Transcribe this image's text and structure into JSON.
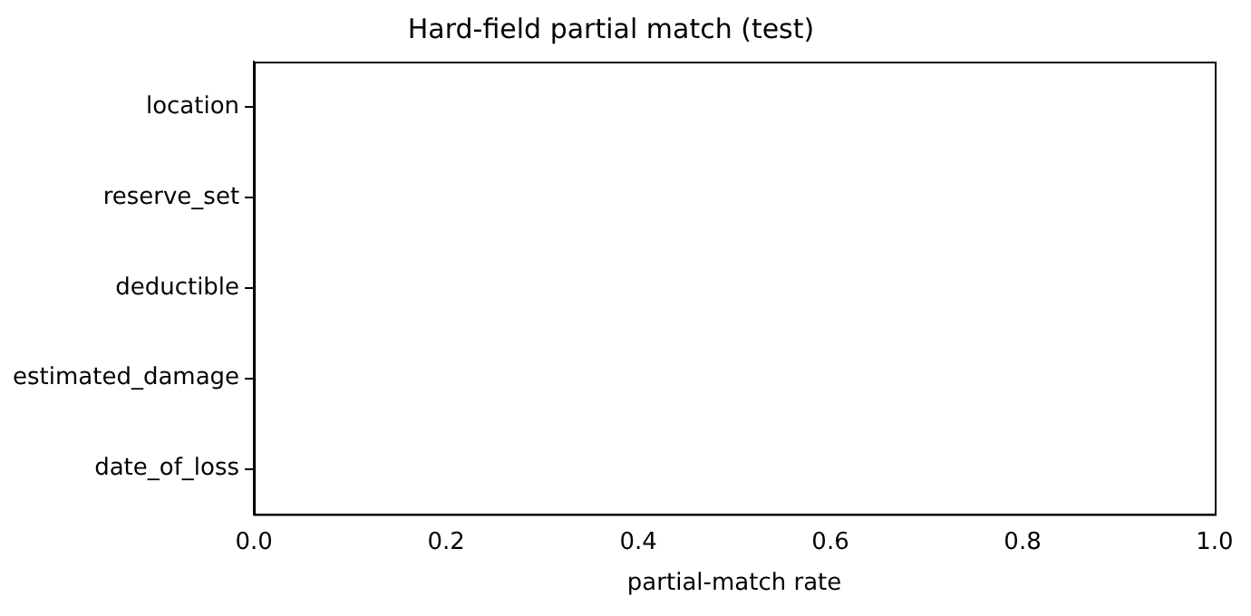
{
  "chart_data": {
    "type": "bar",
    "orientation": "horizontal",
    "title": "Hard-field partial match (test)",
    "xlabel": "partial-match rate",
    "categories": [
      "location",
      "reserve_set",
      "deductible",
      "estimated_damage",
      "date_of_loss"
    ],
    "values": [
      0,
      0,
      0,
      0,
      0
    ],
    "xlim": [
      0,
      1
    ],
    "xticks": [
      {
        "value": 0,
        "label": "0.0"
      },
      {
        "value": 0.2,
        "label": "0.2"
      },
      {
        "value": 0.4,
        "label": "0.4"
      },
      {
        "value": 0.6,
        "label": "0.6"
      },
      {
        "value": 0.8,
        "label": "0.8"
      },
      {
        "value": 1,
        "label": "1.0"
      }
    ],
    "grid": false,
    "legend": false
  }
}
